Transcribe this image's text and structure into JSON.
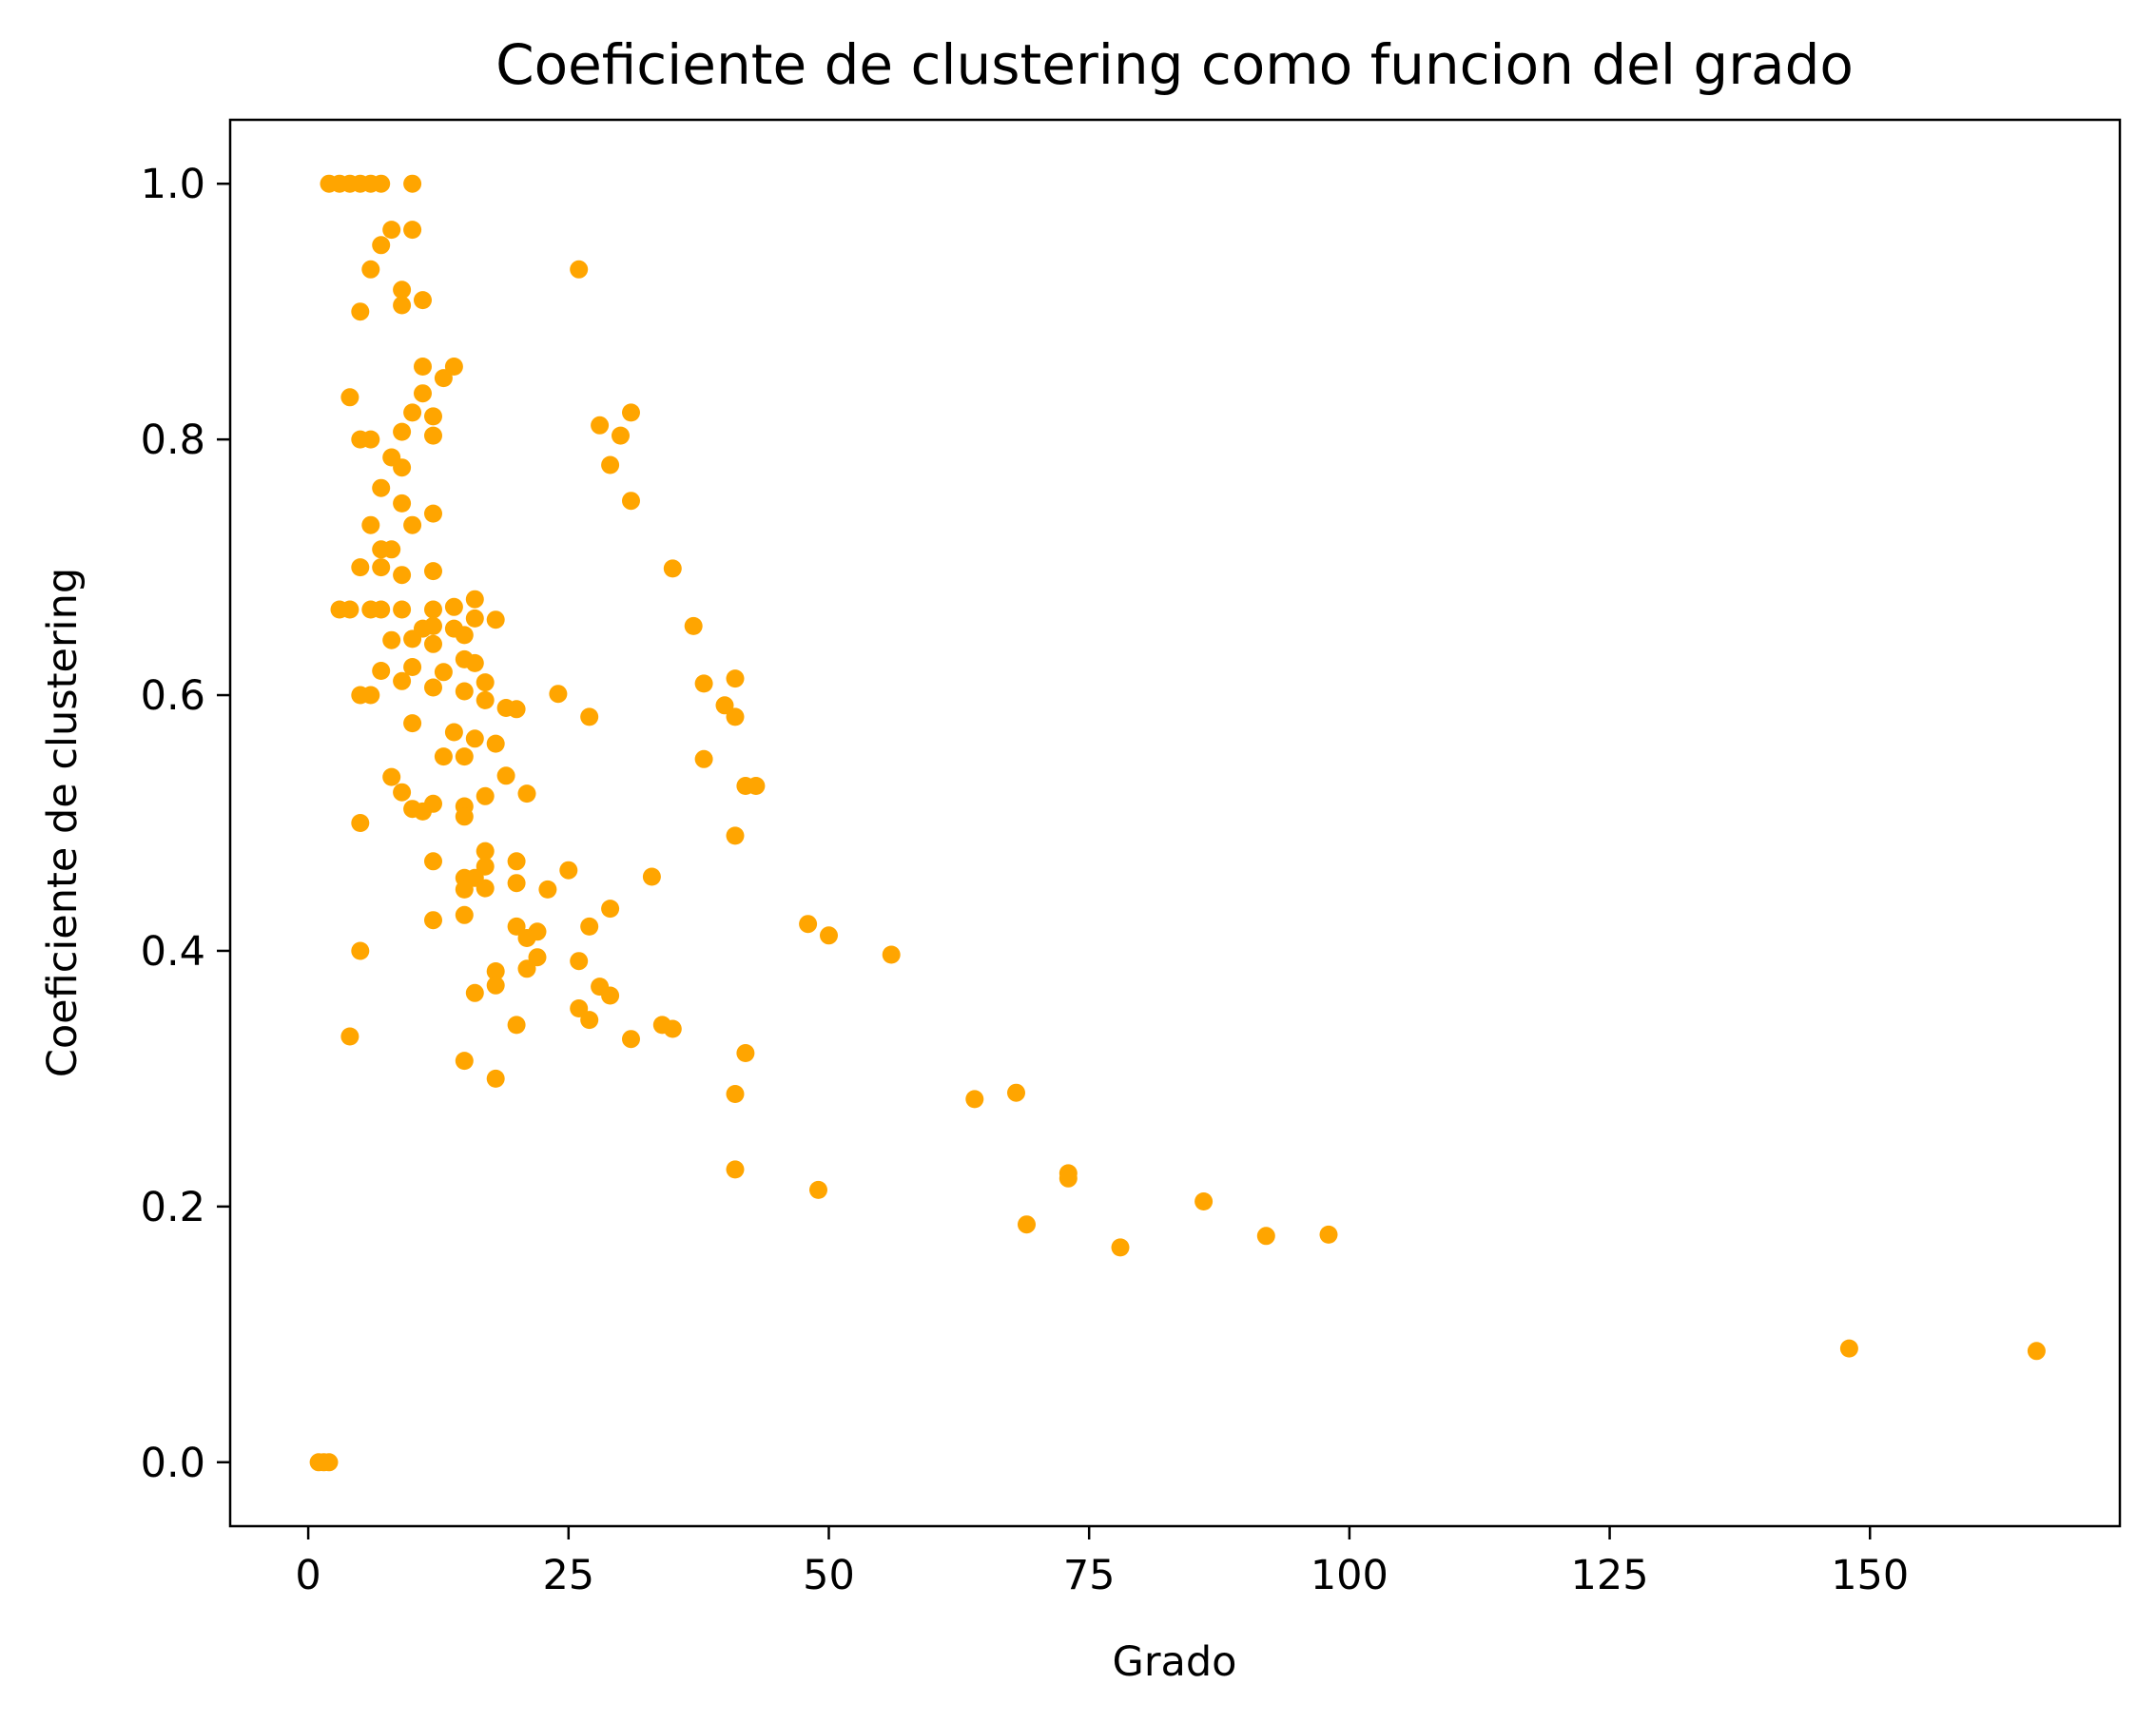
{
  "chart_data": {
    "type": "scatter",
    "title": "Coeficiente de clustering como funcion del grado",
    "xlabel": "Grado",
    "ylabel": "Coeficiente de clustering",
    "xlim": [
      -7.5,
      174
    ],
    "ylim": [
      -0.05,
      1.05
    ],
    "xticks": [
      0,
      25,
      50,
      75,
      100,
      125,
      150
    ],
    "xtick_labels": [
      "0",
      "25",
      "50",
      "75",
      "100",
      "125",
      "150"
    ],
    "yticks": [
      0.0,
      0.2,
      0.4,
      0.6,
      0.8,
      1.0
    ],
    "ytick_labels": [
      "0.0",
      "0.2",
      "0.4",
      "0.6",
      "0.8",
      "1.0"
    ],
    "grid": false,
    "color": "#FFA500",
    "series": [
      {
        "points": [
          [
            1,
            0.0
          ],
          [
            1.5,
            0.0
          ],
          [
            2,
            0.0
          ],
          [
            2,
            1.0
          ],
          [
            3,
            1.0
          ],
          [
            4,
            1.0
          ],
          [
            5,
            1.0
          ],
          [
            6,
            1.0
          ],
          [
            7,
            1.0
          ],
          [
            10,
            1.0
          ],
          [
            8,
            0.964
          ],
          [
            10,
            0.964
          ],
          [
            7,
            0.952
          ],
          [
            6,
            0.933
          ],
          [
            26,
            0.933
          ],
          [
            9,
            0.917
          ],
          [
            11,
            0.909
          ],
          [
            9,
            0.905
          ],
          [
            5,
            0.9
          ],
          [
            11,
            0.857
          ],
          [
            14,
            0.857
          ],
          [
            13,
            0.848
          ],
          [
            11,
            0.836
          ],
          [
            4,
            0.833
          ],
          [
            10,
            0.821
          ],
          [
            12,
            0.818
          ],
          [
            31,
            0.821
          ],
          [
            28,
            0.811
          ],
          [
            9,
            0.806
          ],
          [
            12,
            0.803
          ],
          [
            30,
            0.803
          ],
          [
            5,
            0.8
          ],
          [
            6,
            0.8
          ],
          [
            8,
            0.786
          ],
          [
            29,
            0.78
          ],
          [
            9,
            0.778
          ],
          [
            7,
            0.762
          ],
          [
            31,
            0.752
          ],
          [
            9,
            0.75
          ],
          [
            12,
            0.742
          ],
          [
            6,
            0.733
          ],
          [
            10,
            0.733
          ],
          [
            7,
            0.714
          ],
          [
            8,
            0.714
          ],
          [
            5,
            0.7
          ],
          [
            7,
            0.7
          ],
          [
            35,
            0.699
          ],
          [
            12,
            0.697
          ],
          [
            9,
            0.694
          ],
          [
            16,
            0.675
          ],
          [
            14,
            0.669
          ],
          [
            3,
            0.667
          ],
          [
            4,
            0.667
          ],
          [
            6,
            0.667
          ],
          [
            7,
            0.667
          ],
          [
            9,
            0.667
          ],
          [
            12,
            0.667
          ],
          [
            16,
            0.66
          ],
          [
            18,
            0.659
          ],
          [
            12,
            0.654
          ],
          [
            37,
            0.654
          ],
          [
            11,
            0.652
          ],
          [
            14,
            0.652
          ],
          [
            15,
            0.647
          ],
          [
            10,
            0.644
          ],
          [
            8,
            0.643
          ],
          [
            12,
            0.64
          ],
          [
            15,
            0.628
          ],
          [
            16,
            0.625
          ],
          [
            10,
            0.622
          ],
          [
            7,
            0.619
          ],
          [
            13,
            0.618
          ],
          [
            41,
            0.613
          ],
          [
            9,
            0.611
          ],
          [
            17,
            0.61
          ],
          [
            38,
            0.609
          ],
          [
            12,
            0.606
          ],
          [
            15,
            0.603
          ],
          [
            24,
            0.601
          ],
          [
            5,
            0.6
          ],
          [
            6,
            0.6
          ],
          [
            17,
            0.596
          ],
          [
            40,
            0.592
          ],
          [
            19,
            0.59
          ],
          [
            20,
            0.589
          ],
          [
            27,
            0.583
          ],
          [
            41,
            0.583
          ],
          [
            10,
            0.578
          ],
          [
            14,
            0.571
          ],
          [
            16,
            0.566
          ],
          [
            18,
            0.562
          ],
          [
            13,
            0.552
          ],
          [
            15,
            0.552
          ],
          [
            38,
            0.55
          ],
          [
            19,
            0.537
          ],
          [
            8,
            0.536
          ],
          [
            42,
            0.529
          ],
          [
            43,
            0.529
          ],
          [
            9,
            0.524
          ],
          [
            17,
            0.521
          ],
          [
            21,
            0.523
          ],
          [
            12,
            0.515
          ],
          [
            15,
            0.513
          ],
          [
            10,
            0.511
          ],
          [
            11,
            0.509
          ],
          [
            15,
            0.505
          ],
          [
            5,
            0.5
          ],
          [
            41,
            0.49
          ],
          [
            17,
            0.478
          ],
          [
            12,
            0.47
          ],
          [
            17,
            0.466
          ],
          [
            20,
            0.47
          ],
          [
            25,
            0.463
          ],
          [
            33,
            0.458
          ],
          [
            15,
            0.457
          ],
          [
            16,
            0.457
          ],
          [
            20,
            0.453
          ],
          [
            15,
            0.448
          ],
          [
            17,
            0.449
          ],
          [
            23,
            0.448
          ],
          [
            29,
            0.433
          ],
          [
            15,
            0.428
          ],
          [
            12,
            0.424
          ],
          [
            48,
            0.421
          ],
          [
            20,
            0.419
          ],
          [
            27,
            0.419
          ],
          [
            22,
            0.415
          ],
          [
            50,
            0.412
          ],
          [
            21,
            0.41
          ],
          [
            5,
            0.4
          ],
          [
            56,
            0.397
          ],
          [
            22,
            0.395
          ],
          [
            26,
            0.392
          ],
          [
            21,
            0.386
          ],
          [
            18,
            0.384
          ],
          [
            18,
            0.373
          ],
          [
            28,
            0.372
          ],
          [
            16,
            0.367
          ],
          [
            29,
            0.365
          ],
          [
            26,
            0.355
          ],
          [
            27,
            0.346
          ],
          [
            20,
            0.342
          ],
          [
            34,
            0.342
          ],
          [
            35,
            0.339
          ],
          [
            4,
            0.333
          ],
          [
            31,
            0.331
          ],
          [
            42,
            0.32
          ],
          [
            15,
            0.314
          ],
          [
            18,
            0.3
          ],
          [
            41,
            0.288
          ],
          [
            68,
            0.289
          ],
          [
            64,
            0.284
          ],
          [
            41,
            0.229
          ],
          [
            73,
            0.226
          ],
          [
            73,
            0.222
          ],
          [
            49,
            0.213
          ],
          [
            86,
            0.204
          ],
          [
            69,
            0.186
          ],
          [
            92,
            0.177
          ],
          [
            98,
            0.178
          ],
          [
            78,
            0.168
          ],
          [
            148,
            0.089
          ],
          [
            166,
            0.087
          ]
        ]
      }
    ]
  }
}
